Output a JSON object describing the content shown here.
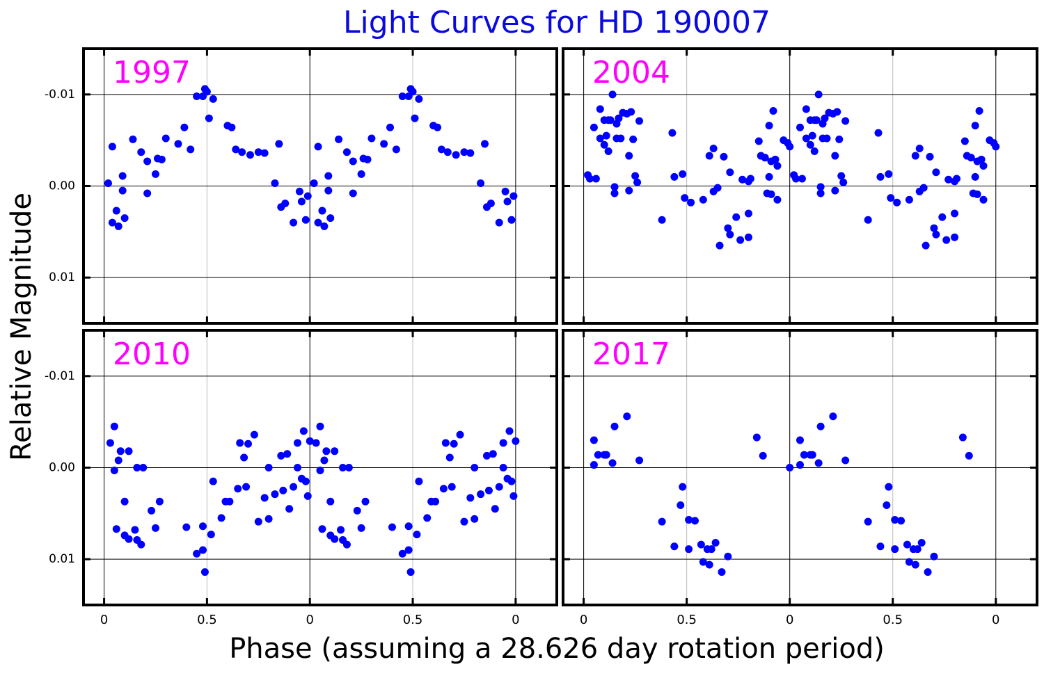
{
  "title": "Light Curves for HD 190007",
  "xlabel": "Phase (assuming a 28.626 day rotation period)",
  "ylabel": "Relative Magnitude",
  "xlim": [
    -0.1,
    2.2
  ],
  "ylim": [
    0.015,
    -0.015
  ],
  "xticks": [
    0,
    0.5,
    {
      "value": 1,
      "label": "0"
    },
    {
      "value": 1.5,
      "label": "0.5"
    },
    {
      "value": 2,
      "label": "0"
    }
  ],
  "yticks": [
    -0.01,
    {
      "value": 0,
      "label": "0.00"
    },
    0.01
  ],
  "grid": true,
  "chart_data": [
    {
      "type": "scatter",
      "title": "1997",
      "color": "#0000ff",
      "x": [
        0.02,
        0.04,
        0.04,
        0.06,
        0.07,
        0.09,
        0.09,
        0.1,
        0.14,
        0.18,
        0.21,
        0.21,
        0.25,
        0.26,
        0.28,
        0.3,
        0.36,
        0.39,
        0.42,
        0.45,
        0.48,
        0.49,
        0.5,
        0.51,
        0.53,
        0.6,
        0.62,
        0.64,
        0.67,
        0.71,
        0.75,
        0.78,
        0.83,
        0.85,
        0.86,
        0.88,
        0.92,
        0.95,
        0.96,
        0.98,
        0.99,
        1.02,
        1.04,
        1.04,
        1.06,
        1.07,
        1.09,
        1.09,
        1.1,
        1.14,
        1.18,
        1.21,
        1.21,
        1.25,
        1.26,
        1.28,
        1.3,
        1.36,
        1.39,
        1.42,
        1.45,
        1.48,
        1.49,
        1.5,
        1.51,
        1.53,
        1.6,
        1.62,
        1.64,
        1.67,
        1.71,
        1.75,
        1.78,
        1.83,
        1.85,
        1.86,
        1.88,
        1.92,
        1.95,
        1.96,
        1.98,
        1.99
      ],
      "values": [
        -0.0003,
        -0.0043,
        0.004,
        0.0027,
        0.0044,
        -0.0011,
        0.0005,
        0.0035,
        -0.0051,
        -0.0037,
        -0.0027,
        0.0008,
        -0.0013,
        -0.003,
        -0.0029,
        -0.0052,
        -0.0046,
        -0.0064,
        -0.004,
        -0.0098,
        -0.0098,
        -0.0106,
        -0.0103,
        -0.0074,
        -0.0095,
        -0.0066,
        -0.0064,
        -0.004,
        -0.0037,
        -0.0034,
        -0.0037,
        -0.0036,
        -0.0003,
        -0.0046,
        0.0023,
        0.0019,
        0.004,
        0.0006,
        0.0017,
        0.0037,
        0.0011,
        -0.0003,
        -0.0043,
        0.004,
        0.0027,
        0.0044,
        -0.0011,
        0.0005,
        0.0035,
        -0.0051,
        -0.0037,
        -0.0027,
        0.0008,
        -0.0013,
        -0.003,
        -0.0029,
        -0.0052,
        -0.0046,
        -0.0064,
        -0.004,
        -0.0098,
        -0.0098,
        -0.0106,
        -0.0103,
        -0.0074,
        -0.0095,
        -0.0066,
        -0.0064,
        -0.004,
        -0.0037,
        -0.0034,
        -0.0037,
        -0.0036,
        -0.0003,
        -0.0046,
        0.0023,
        0.0019,
        0.004,
        0.0006,
        0.0017,
        0.0037,
        0.0011
      ]
    },
    {
      "type": "scatter",
      "title": "2004",
      "color": "#0000ff",
      "x": [
        0.02,
        0.03,
        0.05,
        0.06,
        0.08,
        0.08,
        0.1,
        0.1,
        0.11,
        0.12,
        0.12,
        0.13,
        0.14,
        0.15,
        0.15,
        0.16,
        0.16,
        0.17,
        0.18,
        0.19,
        0.21,
        0.22,
        0.22,
        0.23,
        0.24,
        0.25,
        0.26,
        0.27,
        0.38,
        0.43,
        0.44,
        0.48,
        0.49,
        0.52,
        0.58,
        0.61,
        0.63,
        0.63,
        0.65,
        0.66,
        0.68,
        0.7,
        0.71,
        0.71,
        0.74,
        0.76,
        0.77,
        0.8,
        0.8,
        0.8,
        0.81,
        0.85,
        0.86,
        0.88,
        0.89,
        0.9,
        0.9,
        0.91,
        0.91,
        0.92,
        0.93,
        0.94,
        0.94,
        0.97,
        0.99,
        1.0,
        1.02,
        1.03,
        1.05,
        1.06,
        1.08,
        1.08,
        1.1,
        1.1,
        1.11,
        1.12,
        1.12,
        1.13,
        1.14,
        1.15,
        1.15,
        1.16,
        1.16,
        1.17,
        1.18,
        1.19,
        1.21,
        1.22,
        1.22,
        1.23,
        1.24,
        1.25,
        1.26,
        1.27,
        1.38,
        1.43,
        1.44,
        1.48,
        1.49,
        1.52,
        1.58,
        1.61,
        1.63,
        1.63,
        1.65,
        1.66,
        1.68,
        1.7,
        1.71,
        1.71,
        1.74,
        1.76,
        1.77,
        1.8,
        1.8,
        1.8,
        1.81,
        1.85,
        1.86,
        1.88,
        1.89,
        1.9,
        1.9,
        1.91,
        1.91,
        1.92,
        1.93,
        1.94,
        1.94,
        1.97,
        1.99,
        2.0
      ],
      "values": [
        -0.0012,
        -0.0008,
        -0.0064,
        -0.0008,
        -0.0084,
        -0.0052,
        -0.0072,
        -0.0045,
        -0.0055,
        -0.0072,
        -0.0038,
        -0.0072,
        -0.01,
        0.0001,
        0.0008,
        -0.0068,
        -0.0052,
        -0.0074,
        -0.0052,
        -0.008,
        -0.0079,
        0.0005,
        -0.0033,
        -0.0081,
        -0.0051,
        -0.0011,
        -0.0004,
        -0.0071,
        0.0037,
        -0.0058,
        -0.001,
        -0.0013,
        0.0013,
        0.0018,
        0.0015,
        -0.0033,
        0.0006,
        -0.0041,
        0.0002,
        0.0065,
        -0.0032,
        0.0046,
        0.0053,
        -0.0015,
        0.0034,
        0.0059,
        -0.0007,
        0.0056,
        0.003,
        -0.0005,
        -0.0008,
        -0.0049,
        -0.0033,
        -0.0031,
        0.0008,
        -0.001,
        -0.0066,
        -0.0027,
        0.0009,
        -0.0082,
        -0.0029,
        -0.0022,
        0.0015,
        -0.005,
        -0.0047,
        -0.0043,
        -0.0012,
        -0.0008,
        -0.0064,
        -0.0008,
        -0.0084,
        -0.0052,
        -0.0072,
        -0.0045,
        -0.0055,
        -0.0072,
        -0.0038,
        -0.0072,
        -0.01,
        0.0001,
        0.0008,
        -0.0068,
        -0.0052,
        -0.0074,
        -0.0052,
        -0.008,
        -0.0079,
        0.0005,
        -0.0033,
        -0.0081,
        -0.0051,
        -0.0011,
        -0.0004,
        -0.0071,
        0.0037,
        -0.0058,
        -0.001,
        -0.0013,
        0.0013,
        0.0018,
        0.0015,
        -0.0033,
        0.0006,
        -0.0041,
        0.0002,
        0.0065,
        -0.0032,
        0.0046,
        0.0053,
        -0.0015,
        0.0034,
        0.0059,
        -0.0007,
        0.0056,
        0.003,
        -0.0005,
        -0.0008,
        -0.0049,
        -0.0033,
        -0.0031,
        0.0008,
        -0.001,
        -0.0066,
        -0.0027,
        0.0009,
        -0.0082,
        -0.0029,
        -0.0022,
        0.0015,
        -0.005,
        -0.0047,
        -0.0043
      ]
    },
    {
      "type": "scatter",
      "title": "2010",
      "color": "#0000ff",
      "x": [
        0.03,
        0.05,
        0.05,
        0.06,
        0.07,
        0.08,
        0.1,
        0.1,
        0.12,
        0.12,
        0.15,
        0.16,
        0.16,
        0.18,
        0.19,
        0.23,
        0.25,
        0.27,
        0.4,
        0.45,
        0.48,
        0.48,
        0.49,
        0.52,
        0.53,
        0.57,
        0.59,
        0.61,
        0.65,
        0.66,
        0.68,
        0.69,
        0.7,
        0.73,
        0.75,
        0.78,
        0.8,
        0.8,
        0.83,
        0.86,
        0.87,
        0.89,
        0.9,
        0.92,
        0.94,
        0.94,
        0.96,
        0.97,
        0.98,
        0.99,
        1.0,
        1.03,
        1.05,
        1.05,
        1.06,
        1.07,
        1.08,
        1.1,
        1.1,
        1.12,
        1.12,
        1.15,
        1.16,
        1.16,
        1.18,
        1.19,
        1.23,
        1.25,
        1.27,
        1.4,
        1.45,
        1.48,
        1.48,
        1.49,
        1.52,
        1.53,
        1.57,
        1.59,
        1.61,
        1.65,
        1.66,
        1.68,
        1.69,
        1.7,
        1.73,
        1.75,
        1.78,
        1.8,
        1.8,
        1.83,
        1.86,
        1.87,
        1.89,
        1.9,
        1.92,
        1.94,
        1.94,
        1.96,
        1.97,
        1.98,
        1.99,
        2.0
      ],
      "values": [
        -0.0027,
        -0.0045,
        0.0003,
        0.0067,
        -0.0008,
        -0.0018,
        0.0037,
        0.0074,
        -0.0018,
        0.0078,
        0.0068,
        0,
        0.0079,
        0.0084,
        0,
        0.0047,
        0.0066,
        0.0037,
        0.0065,
        0.0094,
        0.0064,
        0.009,
        0.0114,
        0.0073,
        0.0015,
        0.0055,
        0.0037,
        0.0037,
        0.0023,
        -0.0027,
        -0.0011,
        0.0021,
        -0.0026,
        -0.0036,
        0.0059,
        0.0033,
        0,
        0.0056,
        0.0029,
        -0.0013,
        0.0025,
        -0.0015,
        0.0045,
        0.0021,
        -0.0027,
        0,
        0.0012,
        -0.004,
        0.0015,
        0.0031,
        -0.0029,
        -0.0027,
        -0.0045,
        0.0003,
        0.0067,
        -0.0008,
        -0.0018,
        0.0037,
        0.0074,
        -0.0018,
        0.0078,
        0.0068,
        0,
        0.0079,
        0.0084,
        0,
        0.0047,
        0.0066,
        0.0037,
        0.0065,
        0.0094,
        0.0064,
        0.009,
        0.0114,
        0.0073,
        0.0015,
        0.0055,
        0.0037,
        0.0037,
        0.0023,
        -0.0027,
        -0.0011,
        0.0021,
        -0.0026,
        -0.0036,
        0.0059,
        0.0033,
        0,
        0.0056,
        0.0029,
        -0.0013,
        0.0025,
        -0.0015,
        0.0045,
        0.0021,
        -0.0027,
        0,
        0.0012,
        -0.004,
        0.0015,
        0.0031,
        -0.0029
      ]
    },
    {
      "type": "scatter",
      "title": "2017",
      "color": "#0000ff",
      "x": [
        0.05,
        0.05,
        0.07,
        0.1,
        0.11,
        0.14,
        0.15,
        0.21,
        0.27,
        0.38,
        0.44,
        0.48,
        0.47,
        0.51,
        0.51,
        0.54,
        0.57,
        0.58,
        0.6,
        0.61,
        0.62,
        0.64,
        0.67,
        0.7,
        0.84,
        0.87,
        1.0,
        1.05,
        1.05,
        1.07,
        1.1,
        1.11,
        1.14,
        1.15,
        1.21,
        1.27,
        1.38,
        1.44,
        1.48,
        1.47,
        1.51,
        1.51,
        1.54,
        1.57,
        1.58,
        1.6,
        1.61,
        1.62,
        1.64,
        1.67,
        1.7,
        1.84,
        1.87
      ],
      "values": [
        -0.003,
        -0.0003,
        -0.0014,
        -0.0014,
        -0.0014,
        -0.0005,
        -0.0045,
        -0.0056,
        -0.0008,
        0.0059,
        0.0086,
        0.0021,
        0.0041,
        0.0057,
        0.0089,
        0.0058,
        0.0084,
        0.0103,
        0.0089,
        0.0106,
        0.0089,
        0.0082,
        0.0114,
        0.0097,
        -0.0033,
        -0.0013,
        0,
        -0.003,
        -0.0003,
        -0.0014,
        -0.0014,
        -0.0014,
        -0.0005,
        -0.0045,
        -0.0056,
        -0.0008,
        0.0059,
        0.0086,
        0.0021,
        0.0041,
        0.0057,
        0.0089,
        0.0058,
        0.0084,
        0.0103,
        0.0089,
        0.0106,
        0.0089,
        0.0082,
        0.0114,
        0.0097,
        -0.0033,
        -0.0013
      ]
    }
  ]
}
